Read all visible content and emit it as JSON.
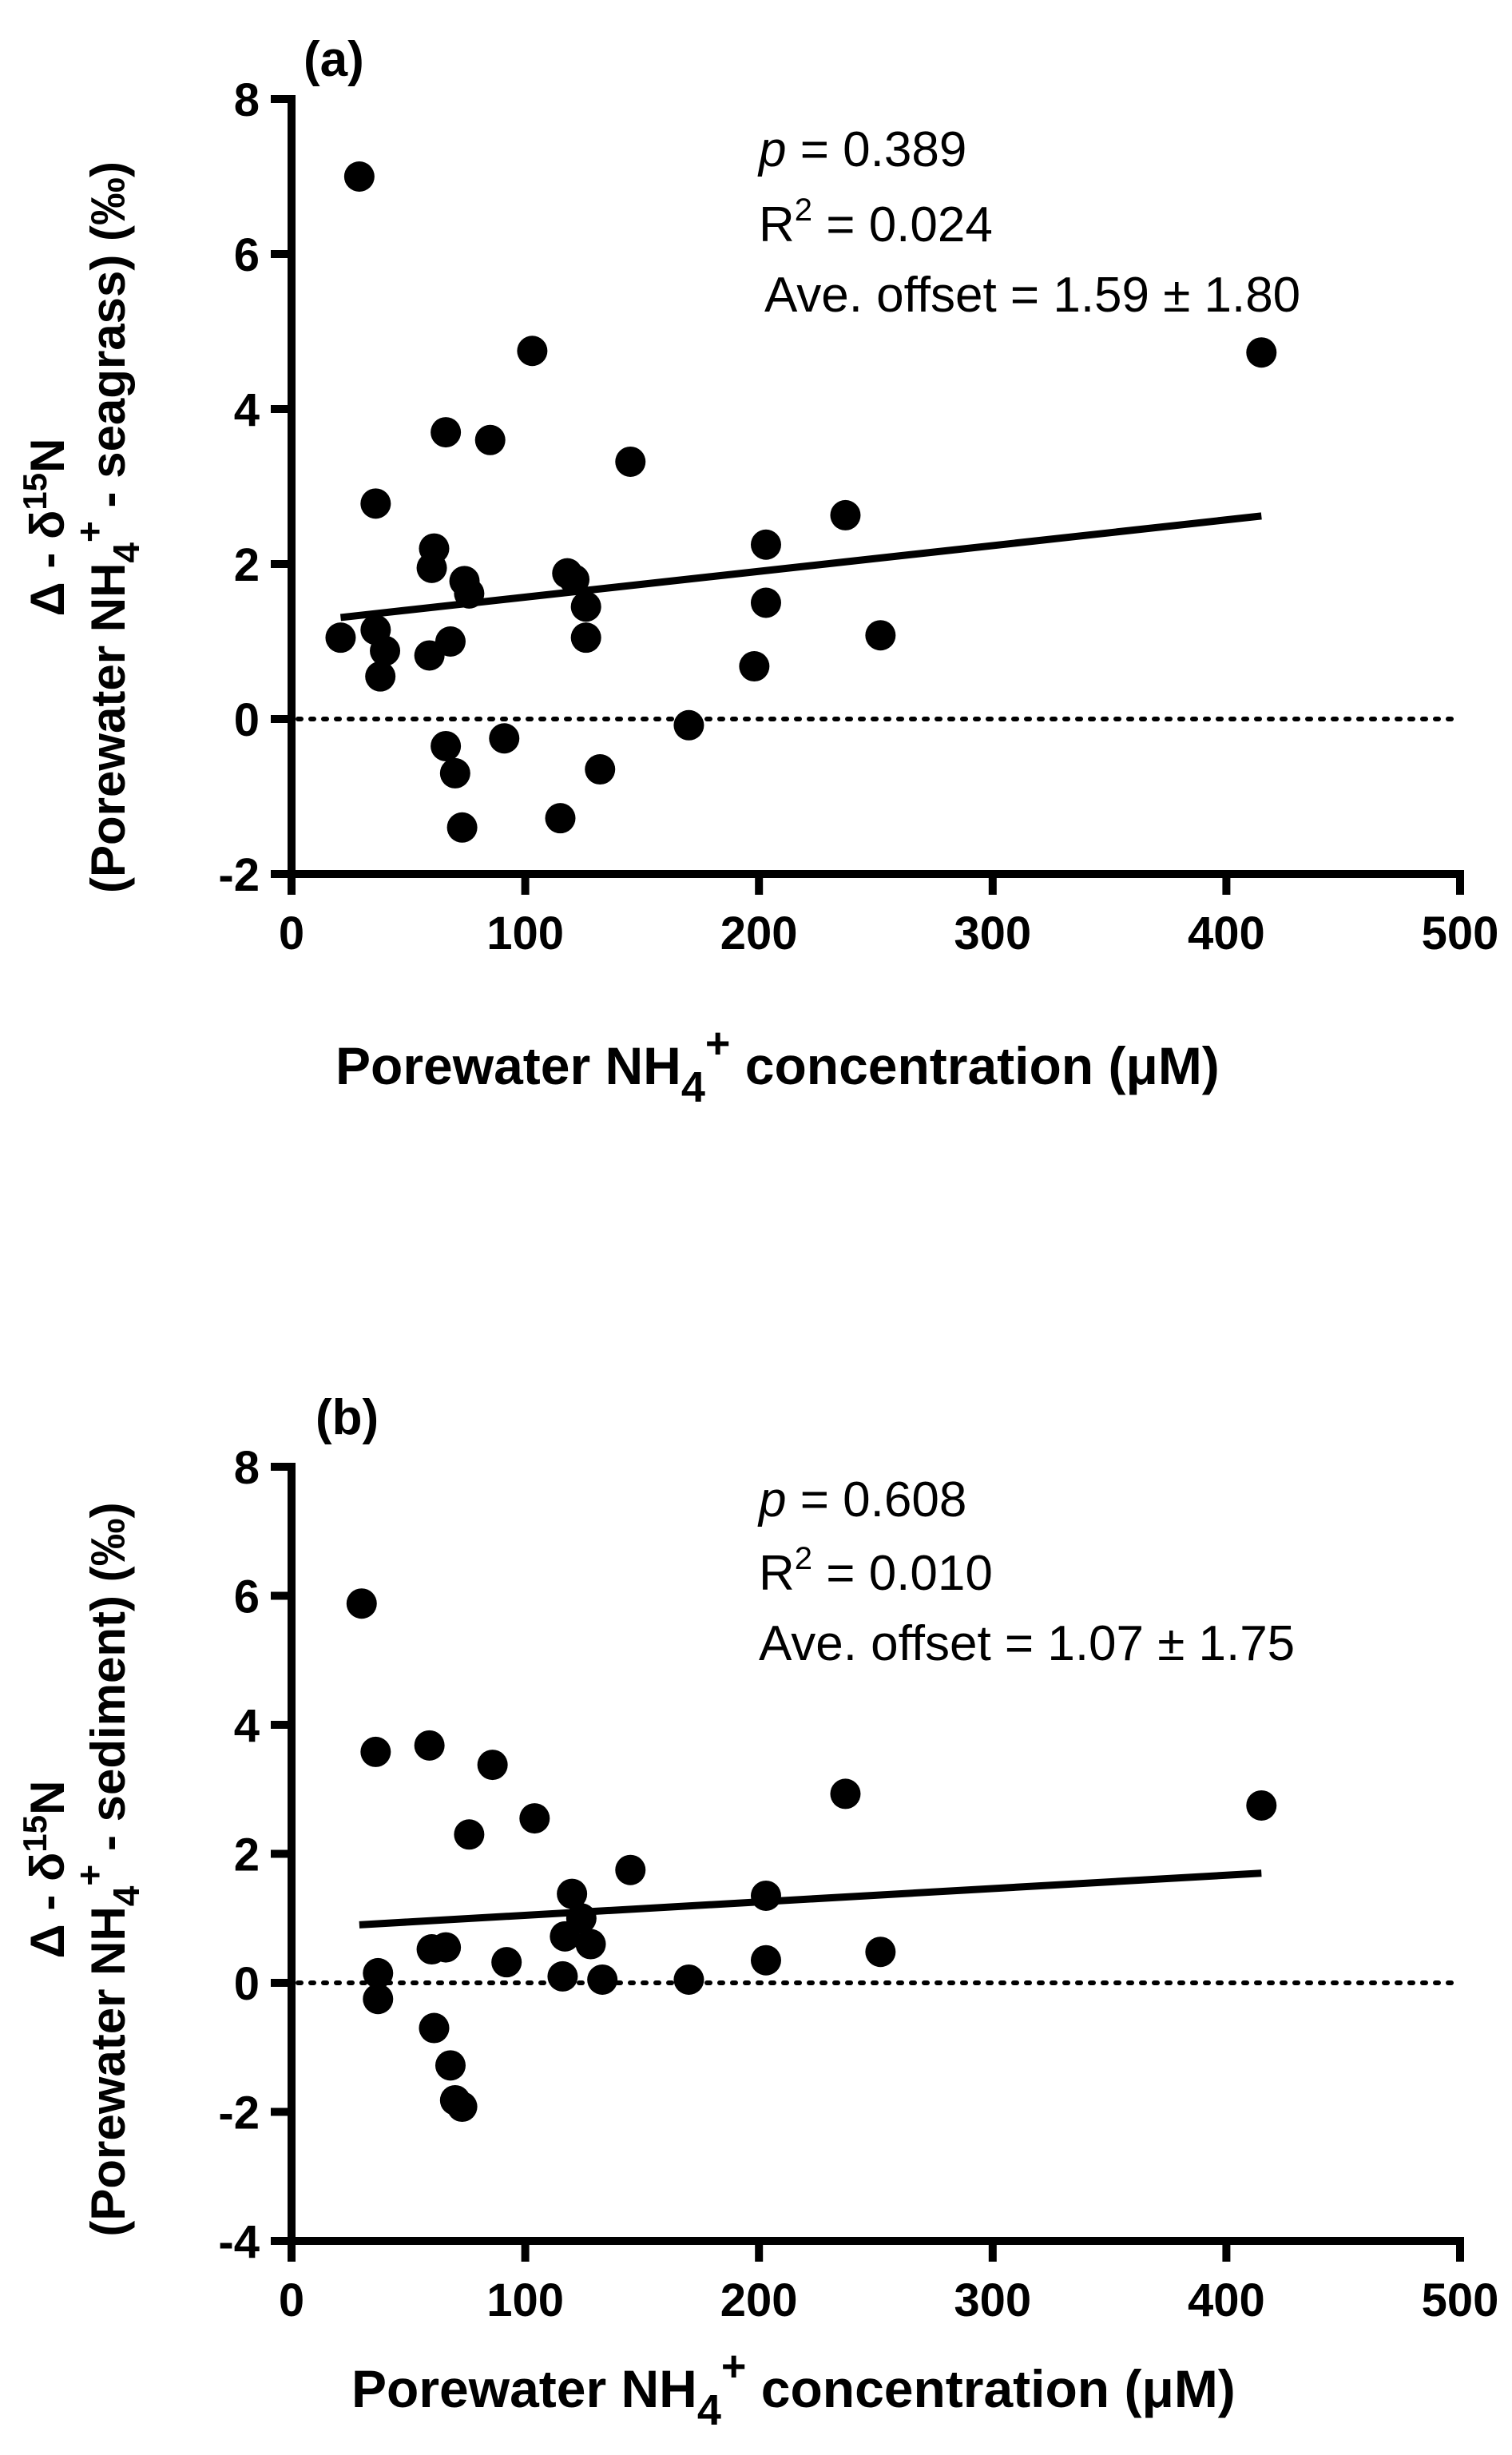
{
  "chart_data": [
    {
      "type": "scatter",
      "panel_label": "(a)",
      "xlabel": {
        "main": "Porewater NH",
        "sub": "4",
        "sup": "+",
        "tail": " concentration (μM)"
      },
      "ylabel": {
        "line1": {
          "main": "Δ - δ",
          "sup": "15",
          "tail": "N"
        },
        "line2": {
          "main": "(Porewater NH",
          "sub": "4",
          "sup": "+",
          "tail": " - seagrass) (‰)"
        }
      },
      "xlim": [
        0,
        500
      ],
      "ylim": [
        -2,
        8
      ],
      "xticks": [
        "0",
        "100",
        "200",
        "300",
        "400",
        "500"
      ],
      "yticks": [
        "-2",
        "0",
        "2",
        "4",
        "6",
        "8"
      ],
      "stats": {
        "p_label": "p",
        "p_value": " = 0.389",
        "r2_main": "R",
        "r2_sup": "2",
        "r2_value": " = 0.024",
        "offset": "Ave. offset = 1.59 ± 1.80"
      },
      "regression": {
        "x": [
          21,
          415
        ],
        "y": [
          1.31,
          2.62
        ]
      },
      "reference_line_y": 0,
      "points": {
        "x": [
          29,
          21,
          36,
          36,
          38,
          40,
          59,
          60,
          61,
          66,
          66,
          68,
          70,
          73,
          74,
          76,
          85,
          91,
          103,
          115,
          118,
          121,
          126,
          126,
          132,
          145,
          170,
          198,
          203,
          203,
          237,
          252,
          415
        ],
        "y": [
          7.0,
          1.05,
          1.15,
          2.78,
          0.55,
          0.88,
          0.82,
          1.95,
          2.2,
          3.7,
          -0.35,
          1.0,
          -0.7,
          -1.4,
          1.78,
          1.62,
          3.6,
          -0.25,
          4.75,
          -1.28,
          1.88,
          1.8,
          1.45,
          1.05,
          -0.65,
          3.32,
          -0.08,
          0.68,
          2.25,
          1.5,
          2.63,
          1.08,
          4.73
        ]
      }
    },
    {
      "type": "scatter",
      "panel_label": "(b)",
      "xlabel": {
        "main": "Porewater NH",
        "sub": "4",
        "sup": "+",
        "tail": " concentration (μM)"
      },
      "ylabel": {
        "line1": {
          "main": "Δ - δ",
          "sup": "15",
          "tail": "N"
        },
        "line2": {
          "main": "(Porewater NH",
          "sub": "4",
          "sup": "+",
          "tail": " - sediment) (‰)"
        }
      },
      "xlim": [
        0,
        500
      ],
      "ylim": [
        -4,
        8
      ],
      "xticks": [
        "0",
        "100",
        "200",
        "300",
        "400",
        "500"
      ],
      "yticks": [
        "-4",
        "-2",
        "0",
        "2",
        "4",
        "6",
        "8"
      ],
      "stats": {
        "p_label": "p",
        "p_value": " = 0.608",
        "r2_main": "R",
        "r2_sup": "2",
        "r2_value": " = 0.010",
        "offset": "Ave. offset  = 1.07 ± 1.75"
      },
      "regression": {
        "x": [
          29,
          415
        ],
        "y": [
          0.9,
          1.7
        ]
      },
      "reference_line_y": 0,
      "points": {
        "x": [
          30,
          36,
          37,
          37,
          59,
          60,
          61,
          66,
          68,
          70,
          73,
          76,
          86,
          92,
          104,
          116,
          117,
          120,
          124,
          128,
          133,
          145,
          170,
          203,
          203,
          237,
          252,
          415
        ],
        "y": [
          5.88,
          3.58,
          0.15,
          -0.25,
          3.68,
          0.52,
          -0.7,
          0.55,
          -1.28,
          -1.82,
          -1.92,
          2.3,
          3.38,
          0.32,
          2.55,
          0.1,
          0.72,
          1.38,
          1.0,
          0.6,
          0.05,
          1.75,
          0.05,
          0.35,
          1.35,
          2.93,
          0.48,
          2.75
        ]
      }
    }
  ]
}
